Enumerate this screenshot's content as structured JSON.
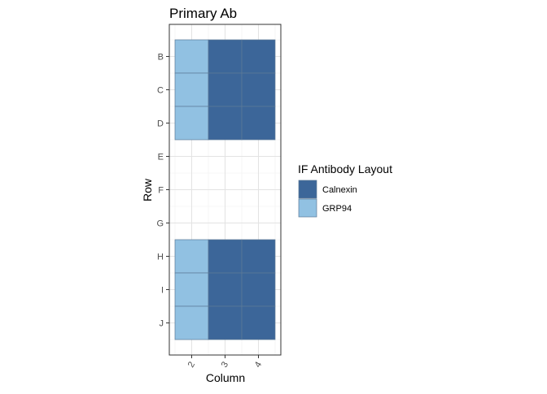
{
  "chart_data": {
    "type": "heatmap",
    "title": "Primary Ab",
    "xlabel": "Column",
    "ylabel": "Row",
    "x_categories": [
      "2",
      "3",
      "4"
    ],
    "y_categories": [
      "B",
      "C",
      "D",
      "E",
      "F",
      "G",
      "H",
      "I",
      "J"
    ],
    "legend": {
      "title": "IF Antibody Layout",
      "position": "right",
      "entries": [
        {
          "label": "Calnexin",
          "color": "#3c6699"
        },
        {
          "label": "GRP94",
          "color": "#91c1e2"
        }
      ]
    },
    "cells": [
      {
        "x": "2",
        "y": "B",
        "value": "GRP94"
      },
      {
        "x": "3",
        "y": "B",
        "value": "Calnexin"
      },
      {
        "x": "4",
        "y": "B",
        "value": "Calnexin"
      },
      {
        "x": "2",
        "y": "C",
        "value": "GRP94"
      },
      {
        "x": "3",
        "y": "C",
        "value": "Calnexin"
      },
      {
        "x": "4",
        "y": "C",
        "value": "Calnexin"
      },
      {
        "x": "2",
        "y": "D",
        "value": "GRP94"
      },
      {
        "x": "3",
        "y": "D",
        "value": "Calnexin"
      },
      {
        "x": "4",
        "y": "D",
        "value": "Calnexin"
      },
      {
        "x": "2",
        "y": "H",
        "value": "GRP94"
      },
      {
        "x": "3",
        "y": "H",
        "value": "Calnexin"
      },
      {
        "x": "4",
        "y": "H",
        "value": "Calnexin"
      },
      {
        "x": "2",
        "y": "I",
        "value": "GRP94"
      },
      {
        "x": "3",
        "y": "I",
        "value": "Calnexin"
      },
      {
        "x": "4",
        "y": "I",
        "value": "Calnexin"
      },
      {
        "x": "2",
        "y": "J",
        "value": "GRP94"
      },
      {
        "x": "3",
        "y": "J",
        "value": "Calnexin"
      },
      {
        "x": "4",
        "y": "J",
        "value": "Calnexin"
      }
    ],
    "grid": true,
    "x_tick_rotation": "rotated"
  }
}
